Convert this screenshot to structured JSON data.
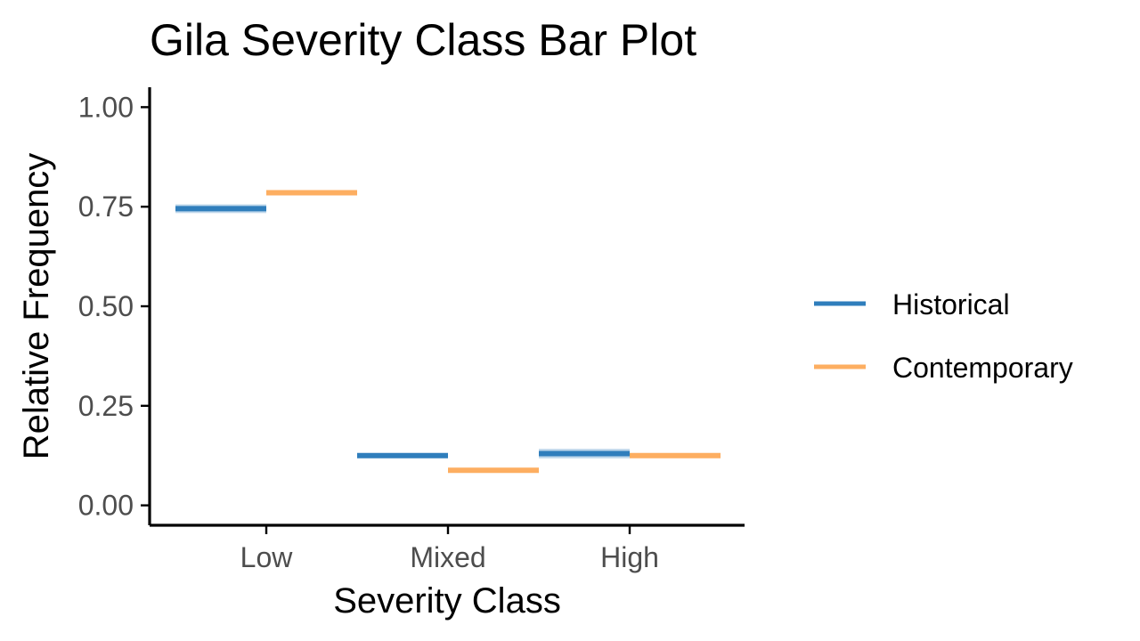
{
  "chart_data": {
    "type": "bar",
    "title": "Gila Severity Class Bar Plot",
    "xlabel": "Severity Class",
    "ylabel": "Relative Frequency",
    "categories": [
      "Low",
      "Mixed",
      "High"
    ],
    "ylim": [
      -0.05,
      1.05
    ],
    "yticks": [
      0.0,
      0.25,
      0.5,
      0.75,
      1.0
    ],
    "ytick_labels": [
      "0.00",
      "0.25",
      "0.50",
      "0.75",
      "1.00"
    ],
    "series": [
      {
        "name": "Historical",
        "color": "#2f7ebc",
        "values": [
          0.745,
          0.125,
          0.13
        ],
        "spread": [
          0.022,
          0.012,
          0.024
        ]
      },
      {
        "name": "Contemporary",
        "color": "#fdae61",
        "values": [
          0.785,
          0.088,
          0.125
        ],
        "spread": [
          0.012,
          0.012,
          0.012
        ]
      }
    ],
    "legend_position": "right",
    "grid": false
  }
}
